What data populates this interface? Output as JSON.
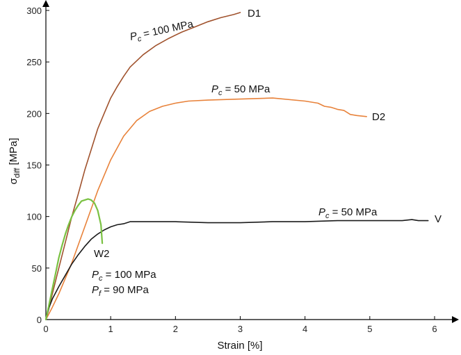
{
  "chart_data": {
    "type": "line",
    "xlabel": "Strain [%]",
    "ylabel_main": "σ",
    "ylabel_sub": "diff",
    "ylabel_unit": " [MPa]",
    "xlim": [
      0,
      6.5
    ],
    "ylim": [
      0,
      305
    ],
    "x_ticks": [
      0,
      1,
      2,
      3,
      4,
      5,
      6
    ],
    "y_ticks": [
      0,
      50,
      100,
      150,
      200,
      250,
      300
    ],
    "grid": false,
    "series": [
      {
        "name": "D1",
        "color": "#a0522d",
        "x": [
          0,
          0.05,
          0.1,
          0.2,
          0.3,
          0.4,
          0.5,
          0.6,
          0.7,
          0.8,
          0.9,
          1.0,
          1.1,
          1.2,
          1.3,
          1.5,
          1.7,
          1.9,
          2.1,
          2.3,
          2.5,
          2.7,
          2.9,
          3.0
        ],
        "y": [
          0,
          12,
          25,
          50,
          75,
          100,
          122,
          145,
          165,
          185,
          200,
          215,
          226,
          236,
          245,
          257,
          266,
          273,
          279,
          284,
          289,
          293,
          296,
          298
        ]
      },
      {
        "name": "D2",
        "color": "#e8823a",
        "x": [
          0,
          0.1,
          0.2,
          0.4,
          0.6,
          0.8,
          1.0,
          1.2,
          1.4,
          1.6,
          1.8,
          2.0,
          2.2,
          2.5,
          3.0,
          3.5,
          4.0,
          4.2,
          4.3,
          4.4,
          4.5,
          4.6,
          4.7,
          4.8,
          4.95
        ],
        "y": [
          0,
          12,
          25,
          55,
          90,
          125,
          155,
          178,
          193,
          202,
          207,
          210,
          212,
          213,
          214,
          215,
          212,
          210,
          207,
          206,
          204,
          203,
          199,
          198,
          197
        ]
      },
      {
        "name": "V",
        "color": "#1a1a1a",
        "x": [
          0,
          0.05,
          0.1,
          0.2,
          0.3,
          0.4,
          0.5,
          0.6,
          0.7,
          0.8,
          0.9,
          1.0,
          1.1,
          1.2,
          1.3,
          1.5,
          2.0,
          2.5,
          3.0,
          3.5,
          4.0,
          4.5,
          5.0,
          5.5,
          5.65,
          5.75,
          5.9
        ],
        "y": [
          0,
          12,
          20,
          32,
          43,
          54,
          63,
          71,
          78,
          83,
          87,
          90,
          92,
          93,
          95,
          95,
          95,
          94,
          94,
          95,
          95,
          96,
          96,
          96,
          97,
          96,
          96
        ]
      },
      {
        "name": "W2",
        "color": "#7ac142",
        "x": [
          0,
          0.05,
          0.1,
          0.15,
          0.2,
          0.25,
          0.3,
          0.35,
          0.4,
          0.45,
          0.5,
          0.55,
          0.6,
          0.65,
          0.7,
          0.75,
          0.8,
          0.85,
          0.87
        ],
        "y": [
          0,
          15,
          30,
          45,
          60,
          72,
          83,
          92,
          100,
          106,
          111,
          115,
          116,
          117,
          116,
          113,
          106,
          92,
          74
        ]
      }
    ],
    "annotations": {
      "d1_sub": "c",
      "d1_rest": " = 100 MPa",
      "d2_sub": "c",
      "d2_rest": " = 50 MPa",
      "v_sub": "c",
      "v_rest": " = 50 MPa",
      "w2_pc_sub": "c",
      "w2_pc_rest": " = 100 MPa",
      "w2_pf_sub": "f",
      "w2_pf_rest": " = 90 MPa",
      "p_symbol": "P"
    }
  }
}
